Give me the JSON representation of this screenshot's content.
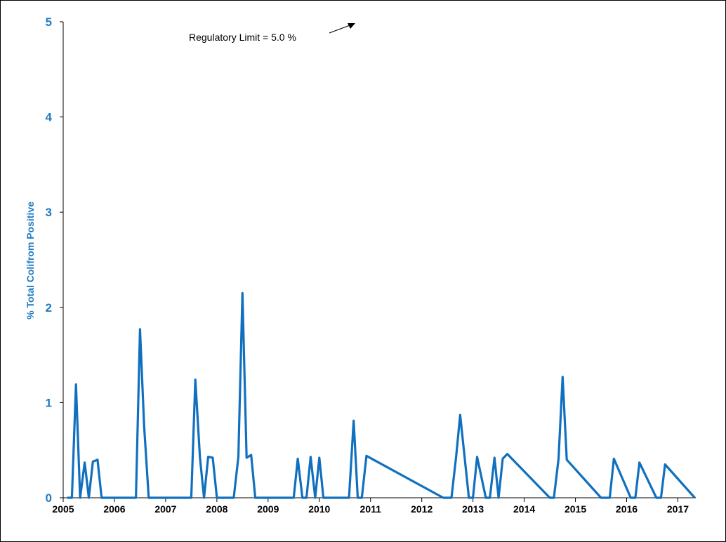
{
  "chart_data": {
    "type": "line",
    "title": "",
    "xlabel": "",
    "ylabel": "% Total Colifrom Positive",
    "xlim": [
      2005.0,
      2017.35
    ],
    "ylim": [
      0,
      5
    ],
    "yticks": [
      "0",
      "1",
      "2",
      "3",
      "4",
      "5"
    ],
    "xticks": [
      "2005",
      "2006",
      "2007",
      "2008",
      "2009",
      "2010",
      "2011",
      "2012",
      "2013",
      "2014",
      "2015",
      "2016",
      "2017"
    ],
    "grid": false,
    "annotation": {
      "text": "Regulatory  Limit = 5.0 %"
    },
    "colors": {
      "line": "#1070BF",
      "axis_text": "#1F7BC1"
    },
    "series": [
      {
        "x": [
          2005.08,
          2005.17,
          2005.25,
          2005.33,
          2005.42,
          2005.5,
          2005.58,
          2005.67,
          2005.75,
          2005.83,
          2006.17,
          2006.33,
          2006.42,
          2006.5,
          2006.58,
          2006.67,
          2006.75,
          2007.33,
          2007.5,
          2007.58,
          2007.67,
          2007.75,
          2007.83,
          2007.92,
          2008.0,
          2008.33,
          2008.42,
          2008.5,
          2008.58,
          2008.67,
          2008.75,
          2009.33,
          2009.5,
          2009.58,
          2009.67,
          2009.75,
          2009.83,
          2009.92,
          2010.0,
          2010.08,
          2010.5,
          2010.58,
          2010.67,
          2010.75,
          2010.83,
          2010.92,
          2012.42,
          2012.58,
          2012.67,
          2012.75,
          2012.92,
          2013.0,
          2013.08,
          2013.25,
          2013.33,
          2013.42,
          2013.5,
          2013.58,
          2013.67,
          2014.5,
          2014.58,
          2014.67,
          2014.75,
          2014.83,
          2015.5,
          2015.67,
          2015.75,
          2016.08,
          2016.17,
          2016.25,
          2016.58,
          2016.67,
          2016.75,
          2017.33
        ],
        "values": [
          0,
          0,
          1.19,
          0,
          0.37,
          0,
          0.38,
          0.4,
          0,
          0,
          0,
          0,
          0,
          1.77,
          0.75,
          0,
          0,
          0,
          0,
          1.24,
          0.42,
          0,
          0.43,
          0.42,
          0,
          0,
          0.43,
          2.15,
          0.42,
          0.45,
          0,
          0,
          0,
          0.41,
          0,
          0,
          0.43,
          0,
          0.42,
          0,
          0,
          0,
          0.81,
          0,
          0,
          0.44,
          0,
          0,
          0.43,
          0.87,
          0,
          0,
          0.43,
          0,
          0,
          0.42,
          0,
          0.41,
          0.46,
          0,
          0,
          0.41,
          1.27,
          0.4,
          0,
          0,
          0.41,
          0,
          0,
          0.37,
          0,
          0,
          0.35,
          0
        ]
      }
    ]
  }
}
